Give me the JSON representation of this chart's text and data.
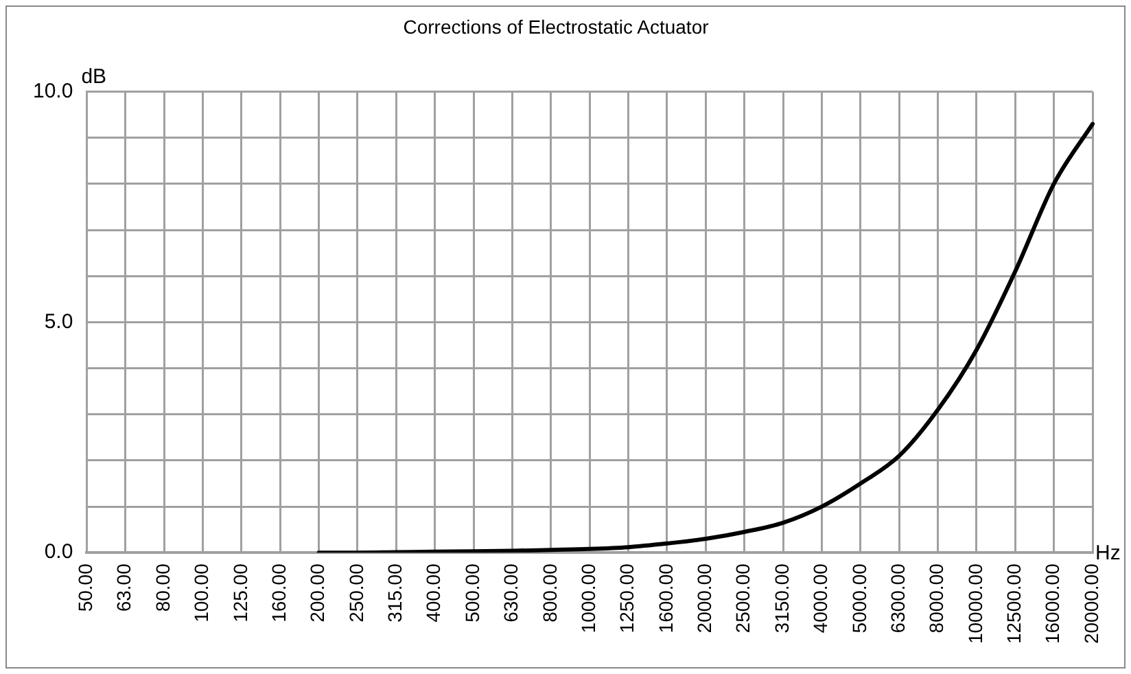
{
  "chart_data": {
    "type": "line",
    "title": "Corrections of Electrostatic Actuator",
    "xlabel": "Hz",
    "ylabel": "dB",
    "categories": [
      "50.00",
      "63.00",
      "80.00",
      "100.00",
      "125.00",
      "160.00",
      "200.00",
      "250.00",
      "315.00",
      "400.00",
      "500.00",
      "630.00",
      "800.00",
      "1000.00",
      "1250.00",
      "1600.00",
      "2000.00",
      "2500.00",
      "3150.00",
      "4000.00",
      "5000.00",
      "6300.00",
      "8000.00",
      "10000.00",
      "12500.00",
      "16000.00",
      "20000.00"
    ],
    "series": [
      {
        "color": "#000000",
        "values": [
          null,
          null,
          null,
          null,
          null,
          null,
          0,
          0,
          0.01,
          0.02,
          0.03,
          0.04,
          0.06,
          0.08,
          0.12,
          0.2,
          0.3,
          0.45,
          0.65,
          1.0,
          1.5,
          2.1,
          3.1,
          4.4,
          6.1,
          8.0,
          9.3
        ]
      }
    ],
    "ylim": [
      0,
      10
    ],
    "yticks": [
      {
        "value": 0,
        "label": "0.0"
      },
      {
        "value": 1,
        "label": null
      },
      {
        "value": 2,
        "label": null
      },
      {
        "value": 3,
        "label": null
      },
      {
        "value": 4,
        "label": null
      },
      {
        "value": 5,
        "label": "5.0"
      },
      {
        "value": 6,
        "label": null
      },
      {
        "value": 7,
        "label": null
      },
      {
        "value": 8,
        "label": null
      },
      {
        "value": 9,
        "label": null
      },
      {
        "value": 10,
        "label": "10.0"
      }
    ],
    "grid": true,
    "legend": false,
    "marker": "none",
    "line_style": "solid"
  }
}
